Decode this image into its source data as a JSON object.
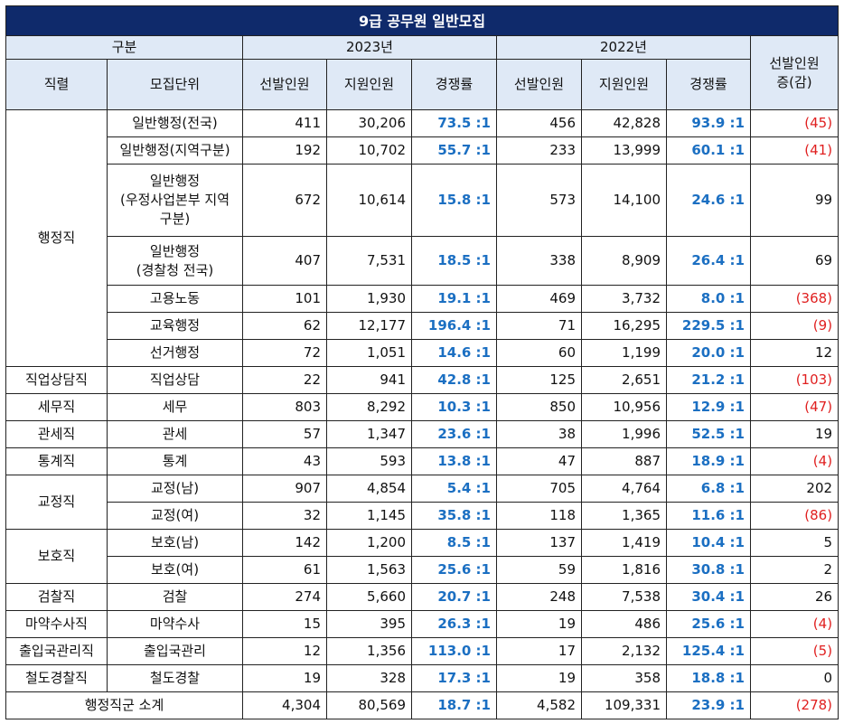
{
  "title": "9급 공무원 일반모집",
  "headers": {
    "gubun": "구분",
    "year2023": "2023년",
    "year2022": "2022년",
    "change_line1": "선발인원",
    "change_line2": "증(감)",
    "jikryeol": "직렬",
    "mojip": "모집단위",
    "sunbal": "선발인원",
    "jiwon": "지원인원",
    "rate": "경쟁률"
  },
  "rows": [
    {
      "group": "행정직",
      "unit": "일반행정(전국)",
      "s23": "411",
      "a23": "30,206",
      "r23": "73.5 :1",
      "s22": "456",
      "a22": "42,828",
      "r22": "93.9 :1",
      "diff": "(45)",
      "neg": true
    },
    {
      "unit": "일반행정(지역구분)",
      "s23": "192",
      "a23": "10,702",
      "r23": "55.7 :1",
      "s22": "233",
      "a22": "13,999",
      "r22": "60.1 :1",
      "diff": "(41)",
      "neg": true
    },
    {
      "unit_lines": [
        "일반행정",
        "(우정사업본부 지역",
        "구분)"
      ],
      "s23": "672",
      "a23": "10,614",
      "r23": "15.8 :1",
      "s22": "573",
      "a22": "14,100",
      "r22": "24.6 :1",
      "diff": "99",
      "neg": false
    },
    {
      "unit_lines": [
        "일반행정",
        "(경찰청 전국)"
      ],
      "s23": "407",
      "a23": "7,531",
      "r23": "18.5 :1",
      "s22": "338",
      "a22": "8,909",
      "r22": "26.4 :1",
      "diff": "69",
      "neg": false
    },
    {
      "unit": "고용노동",
      "s23": "101",
      "a23": "1,930",
      "r23": "19.1 :1",
      "s22": "469",
      "a22": "3,732",
      "r22": "8.0 :1",
      "diff": "(368)",
      "neg": true
    },
    {
      "unit": "교육행정",
      "s23": "62",
      "a23": "12,177",
      "r23": "196.4 :1",
      "s22": "71",
      "a22": "16,295",
      "r22": "229.5 :1",
      "diff": "(9)",
      "neg": true
    },
    {
      "unit": "선거행정",
      "s23": "72",
      "a23": "1,051",
      "r23": "14.6 :1",
      "s22": "60",
      "a22": "1,199",
      "r22": "20.0 :1",
      "diff": "12",
      "neg": false
    },
    {
      "group": "직업상담직",
      "unit": "직업상담",
      "s23": "22",
      "a23": "941",
      "r23": "42.8 :1",
      "s22": "125",
      "a22": "2,651",
      "r22": "21.2 :1",
      "diff": "(103)",
      "neg": true
    },
    {
      "group": "세무직",
      "unit": "세무",
      "s23": "803",
      "a23": "8,292",
      "r23": "10.3 :1",
      "s22": "850",
      "a22": "10,956",
      "r22": "12.9 :1",
      "diff": "(47)",
      "neg": true
    },
    {
      "group": "관세직",
      "unit": "관세",
      "s23": "57",
      "a23": "1,347",
      "r23": "23.6 :1",
      "s22": "38",
      "a22": "1,996",
      "r22": "52.5 :1",
      "diff": "19",
      "neg": false
    },
    {
      "group": "통계직",
      "unit": "통계",
      "s23": "43",
      "a23": "593",
      "r23": "13.8 :1",
      "s22": "47",
      "a22": "887",
      "r22": "18.9 :1",
      "diff": "(4)",
      "neg": true
    },
    {
      "group": "교정직",
      "unit": "교정(남)",
      "s23": "907",
      "a23": "4,854",
      "r23": "5.4 :1",
      "s22": "705",
      "a22": "4,764",
      "r22": "6.8 :1",
      "diff": "202",
      "neg": false
    },
    {
      "unit": "교정(여)",
      "s23": "32",
      "a23": "1,145",
      "r23": "35.8 :1",
      "s22": "118",
      "a22": "1,365",
      "r22": "11.6 :1",
      "diff": "(86)",
      "neg": true
    },
    {
      "group": "보호직",
      "unit": "보호(남)",
      "s23": "142",
      "a23": "1,200",
      "r23": "8.5 :1",
      "s22": "137",
      "a22": "1,419",
      "r22": "10.4 :1",
      "diff": "5",
      "neg": false
    },
    {
      "unit": "보호(여)",
      "s23": "61",
      "a23": "1,563",
      "r23": "25.6 :1",
      "s22": "59",
      "a22": "1,816",
      "r22": "30.8 :1",
      "diff": "2",
      "neg": false
    },
    {
      "group": "검찰직",
      "unit": "검찰",
      "s23": "274",
      "a23": "5,660",
      "r23": "20.7 :1",
      "s22": "248",
      "a22": "7,538",
      "r22": "30.4 :1",
      "diff": "26",
      "neg": false
    },
    {
      "group": "마약수사직",
      "unit": "마약수사",
      "s23": "15",
      "a23": "395",
      "r23": "26.3 :1",
      "s22": "19",
      "a22": "486",
      "r22": "25.6 :1",
      "diff": "(4)",
      "neg": true
    },
    {
      "group": "출입국관리직",
      "unit": "출입국관리",
      "s23": "12",
      "a23": "1,356",
      "r23": "113.0 :1",
      "s22": "17",
      "a22": "2,132",
      "r22": "125.4 :1",
      "diff": "(5)",
      "neg": true
    },
    {
      "group": "철도경찰직",
      "unit": "철도경찰",
      "s23": "19",
      "a23": "328",
      "r23": "17.3 :1",
      "s22": "19",
      "a22": "358",
      "r22": "18.8 :1",
      "diff": "0",
      "neg": false
    }
  ],
  "total": {
    "label": "행정직군 소계",
    "s23": "4,304",
    "a23": "80,569",
    "r23": "18.7 :1",
    "s22": "4,582",
    "a22": "109,331",
    "r22": "23.9 :1",
    "diff": "(278)",
    "neg": true
  },
  "colors": {
    "title_bg": "#0f2a6b",
    "header_bg": "#dfe9f6",
    "rate": "#1b6fc2",
    "negative": "#e02020"
  }
}
